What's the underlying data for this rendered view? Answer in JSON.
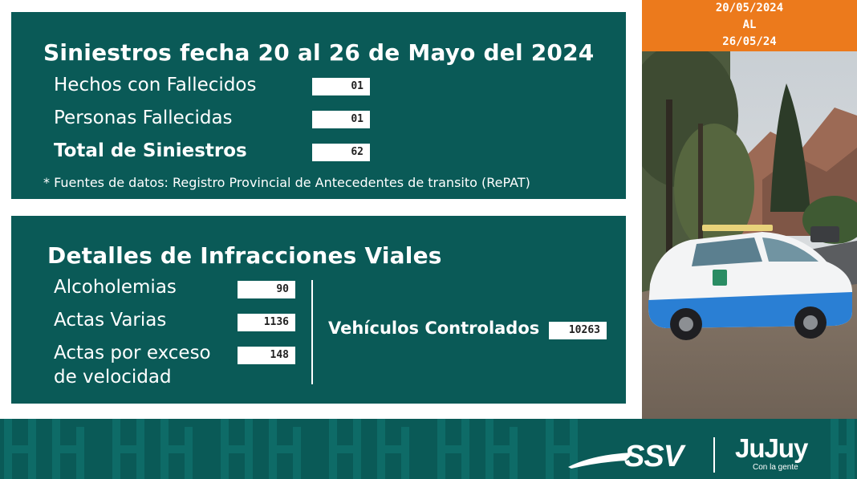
{
  "date_badge": {
    "from": "20/05/2024",
    "sep": "AL",
    "to": "26/05/24"
  },
  "siniestros": {
    "title": "Siniestros fecha 20 al 26 de Mayo del 2024",
    "rows": [
      {
        "label": "Hechos con Fallecidos",
        "value": "01"
      },
      {
        "label": "Personas Fallecidas",
        "value": "01"
      },
      {
        "label": "Total de Siniestros",
        "value": "62"
      }
    ],
    "source_note": "* Fuentes de datos: Registro Provincial de Antecedentes de transito (RePAT)"
  },
  "infracciones": {
    "title": "Detalles de Infracciones Viales",
    "rows": [
      {
        "label": "Alcoholemias",
        "value": "90"
      },
      {
        "label": "Actas Varias",
        "value": "1136"
      },
      {
        "label_line1": "Actas por exceso",
        "label_line2": "de velocidad",
        "value": "148"
      }
    ],
    "vehiculos_label": "Vehículos Controlados",
    "vehiculos_value": "10263"
  },
  "footer": {
    "logo_ssv": "SSV",
    "logo_jujuy": "JuJuy",
    "logo_tagline": "Con la gente"
  },
  "colors": {
    "panel": "#0a5a57",
    "badge": "#ec7a1c"
  }
}
